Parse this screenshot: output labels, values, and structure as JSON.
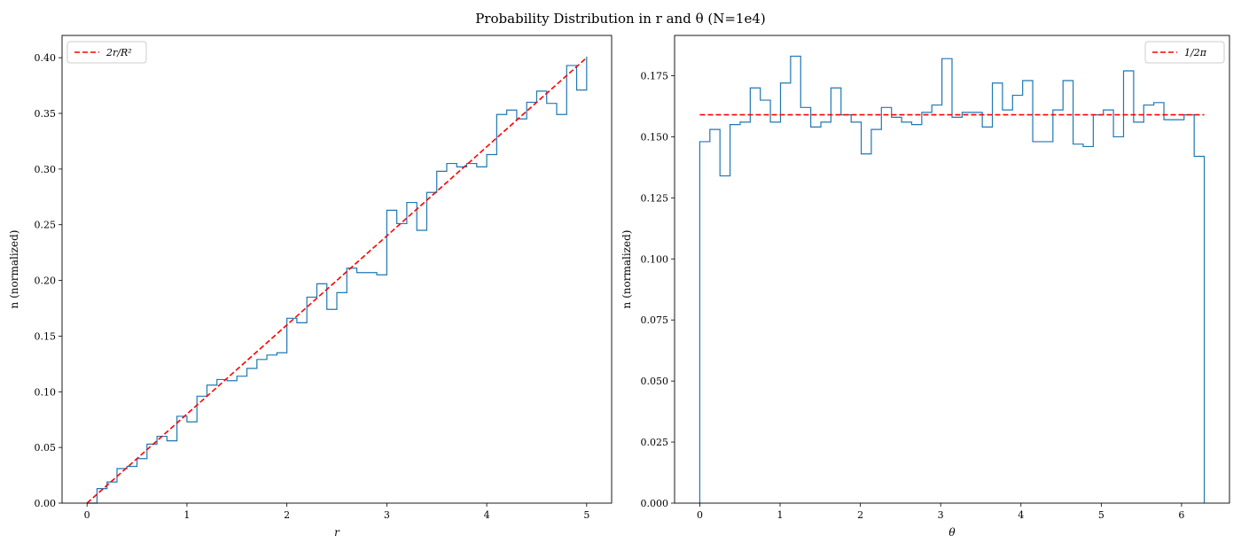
{
  "figure": {
    "title": "Probability Distribution in r and θ (N=1e4)"
  },
  "chart_data": [
    {
      "type": "line",
      "subtype": "step-histogram",
      "title": "",
      "xlabel": "r",
      "ylabel": "n (normalized)",
      "xlim": [
        -0.25,
        5.25
      ],
      "ylim": [
        0,
        0.42
      ],
      "xticks": [
        0,
        1,
        2,
        3,
        4,
        5
      ],
      "xtick_labels": [
        "0",
        "1",
        "2",
        "3",
        "4",
        "5"
      ],
      "yticks": [
        0,
        0.05,
        0.1,
        0.15,
        0.2,
        0.25,
        0.3,
        0.35,
        0.4
      ],
      "ytick_labels": [
        "0.00",
        "0.05",
        "0.10",
        "0.15",
        "0.20",
        "0.25",
        "0.30",
        "0.35",
        "0.40"
      ],
      "grid": false,
      "legend": "upper-left",
      "series": [
        {
          "name": "",
          "kind": "step",
          "color": "#1f77b4",
          "bin_edges": [
            0,
            0.1,
            0.2,
            0.3,
            0.4,
            0.5,
            0.6,
            0.7,
            0.8,
            0.9,
            1.0,
            1.1,
            1.2,
            1.3,
            1.4,
            1.5,
            1.6,
            1.7,
            1.8,
            1.9,
            2.0,
            2.1,
            2.2,
            2.3,
            2.4,
            2.5,
            2.6,
            2.7,
            2.8,
            2.9,
            3.0,
            3.1,
            3.2,
            3.3,
            3.4,
            3.5,
            3.6,
            3.7,
            3.8,
            3.9,
            4.0,
            4.1,
            4.2,
            4.3,
            4.4,
            4.5,
            4.6,
            4.7,
            4.8,
            4.9,
            5.0
          ],
          "values": [
            0.0,
            0.013,
            0.019,
            0.031,
            0.033,
            0.04,
            0.053,
            0.06,
            0.056,
            0.078,
            0.073,
            0.096,
            0.106,
            0.111,
            0.11,
            0.114,
            0.121,
            0.129,
            0.133,
            0.135,
            0.166,
            0.162,
            0.185,
            0.197,
            0.174,
            0.189,
            0.211,
            0.207,
            0.207,
            0.205,
            0.263,
            0.251,
            0.27,
            0.245,
            0.279,
            0.298,
            0.305,
            0.302,
            0.305,
            0.302,
            0.313,
            0.349,
            0.353,
            0.345,
            0.36,
            0.37,
            0.359,
            0.349,
            0.393,
            0.371,
            0.401
          ]
        },
        {
          "name": "2r/R²",
          "kind": "line",
          "dashed": true,
          "color": "#ff0000",
          "x": [
            0,
            5
          ],
          "y": [
            0,
            0.4
          ]
        }
      ]
    },
    {
      "type": "line",
      "subtype": "step-histogram",
      "title": "",
      "xlabel": "θ",
      "ylabel": "n (normalized)",
      "xlim": [
        -0.314,
        6.597
      ],
      "ylim": [
        0,
        0.1915
      ],
      "xticks": [
        0,
        1,
        2,
        3,
        4,
        5,
        6
      ],
      "xtick_labels": [
        "0",
        "1",
        "2",
        "3",
        "4",
        "5",
        "6"
      ],
      "yticks": [
        0,
        0.025,
        0.05,
        0.075,
        0.1,
        0.125,
        0.15,
        0.175
      ],
      "ytick_labels": [
        "0.000",
        "0.025",
        "0.050",
        "0.075",
        "0.100",
        "0.125",
        "0.150",
        "0.175"
      ],
      "grid": false,
      "legend": "upper-right",
      "series": [
        {
          "name": "",
          "kind": "step",
          "color": "#1f77b4",
          "x_start": 0,
          "x_end": 6.283,
          "values": [
            0.148,
            0.153,
            0.134,
            0.155,
            0.156,
            0.17,
            0.165,
            0.156,
            0.172,
            0.183,
            0.162,
            0.154,
            0.156,
            0.17,
            0.159,
            0.156,
            0.143,
            0.153,
            0.162,
            0.158,
            0.156,
            0.155,
            0.16,
            0.163,
            0.182,
            0.158,
            0.16,
            0.16,
            0.154,
            0.172,
            0.161,
            0.167,
            0.173,
            0.148,
            0.148,
            0.161,
            0.173,
            0.147,
            0.146,
            0.159,
            0.161,
            0.15,
            0.177,
            0.156,
            0.163,
            0.164,
            0.157,
            0.157,
            0.159,
            0.142
          ]
        },
        {
          "name": "1/2π",
          "kind": "line",
          "dashed": true,
          "color": "#ff0000",
          "x": [
            0,
            6.283
          ],
          "y": [
            0.159,
            0.159
          ]
        }
      ]
    }
  ]
}
